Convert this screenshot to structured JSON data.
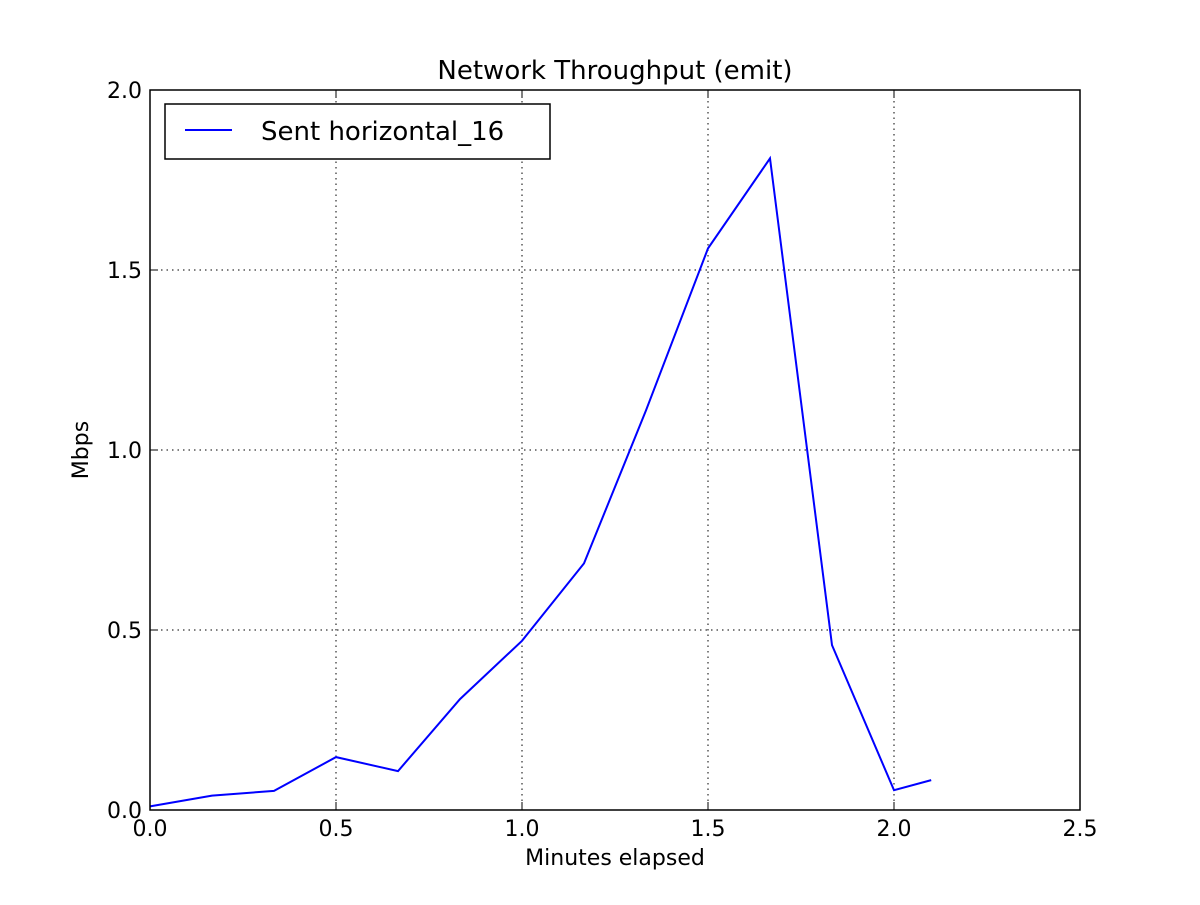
{
  "chart_data": {
    "type": "line",
    "title": "Network Throughput (emit)",
    "xlabel": "Minutes elapsed",
    "ylabel": "Mbps",
    "xlim": [
      0,
      2.5
    ],
    "ylim": [
      0,
      2.0
    ],
    "xticks": [
      0,
      0.5,
      1.0,
      1.5,
      2.0,
      2.5
    ],
    "xtick_labels": [
      "0.0",
      "0.5",
      "1.0",
      "1.5",
      "2.0",
      "2.5"
    ],
    "yticks": [
      0,
      0.5,
      1.0,
      1.5,
      2.0
    ],
    "ytick_labels": [
      "0.0",
      "0.5",
      "1.0",
      "1.5",
      "2.0"
    ],
    "grid": true,
    "legend_position": "top-left",
    "series": [
      {
        "name": "Sent horizontal_16",
        "color": "#0000ff",
        "x": [
          0.0,
          0.1667,
          0.3333,
          0.5,
          0.6667,
          0.8333,
          1.0,
          1.1667,
          1.3333,
          1.5,
          1.6667,
          1.8333,
          2.0,
          2.1
        ],
        "y": [
          0.01,
          0.04,
          0.053,
          0.147,
          0.108,
          0.308,
          0.47,
          0.685,
          1.11,
          1.56,
          1.81,
          0.458,
          0.055,
          0.083
        ]
      }
    ]
  }
}
